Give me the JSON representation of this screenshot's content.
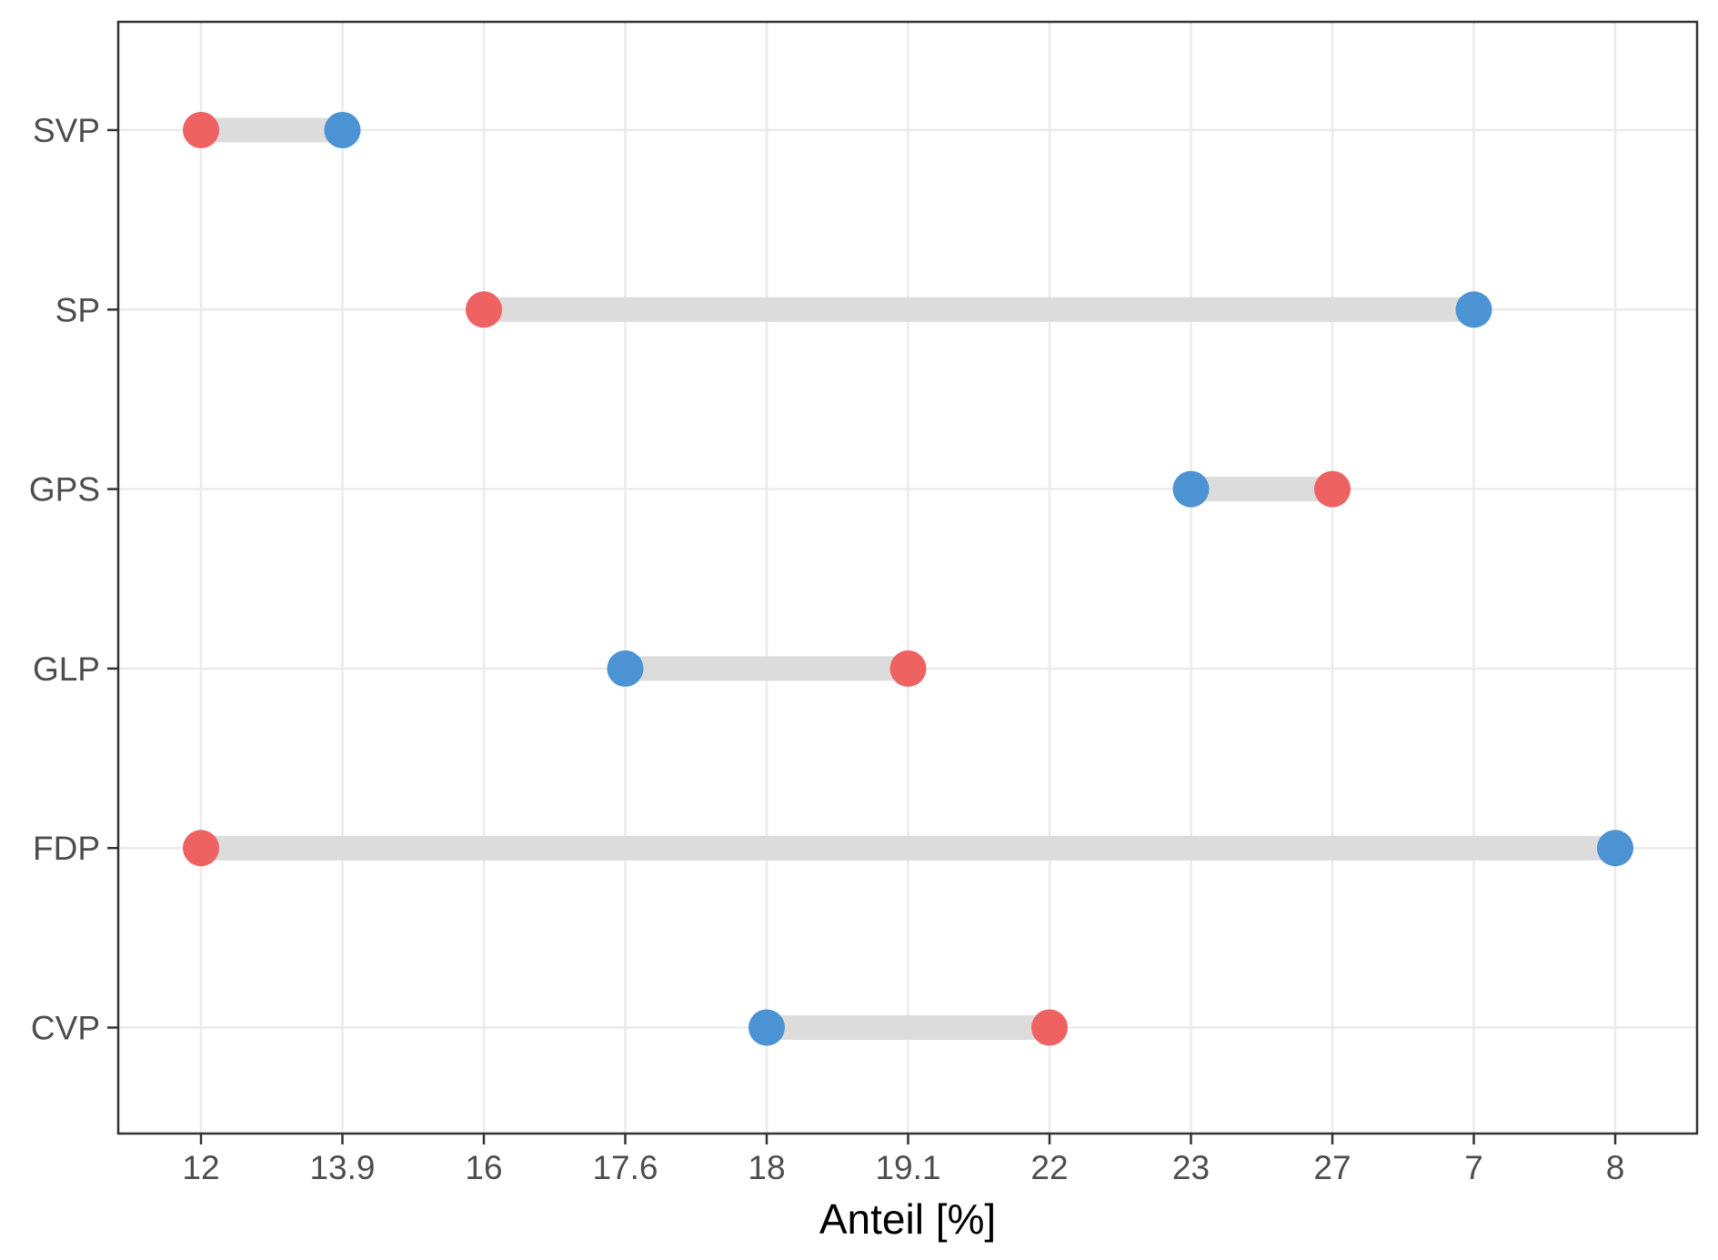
{
  "chart_data": {
    "type": "dumbbell",
    "xlabel": "Anteil [%]",
    "ylabel": "",
    "x_tick_labels": [
      "12",
      "13.9",
      "16",
      "17.6",
      "18",
      "19.1",
      "22",
      "23",
      "27",
      "7",
      "8"
    ],
    "categories": [
      "SVP",
      "SP",
      "GPS",
      "GLP",
      "FDP",
      "CVP"
    ],
    "rows": [
      {
        "category": "SVP",
        "red": "12",
        "blue": "13.9"
      },
      {
        "category": "SP",
        "red": "16",
        "blue": "7"
      },
      {
        "category": "GPS",
        "red": "27",
        "blue": "23"
      },
      {
        "category": "GLP",
        "red": "19.1",
        "blue": "17.6"
      },
      {
        "category": "FDP",
        "red": "12",
        "blue": "8"
      },
      {
        "category": "CVP",
        "red": "22",
        "blue": "18"
      }
    ],
    "grid": true,
    "legend": "none",
    "colors": {
      "red": "#EF6262",
      "blue": "#4C93D3",
      "segment": "#DCDCDC",
      "grid": "#EBEBEB",
      "panel_border": "#333333"
    }
  }
}
